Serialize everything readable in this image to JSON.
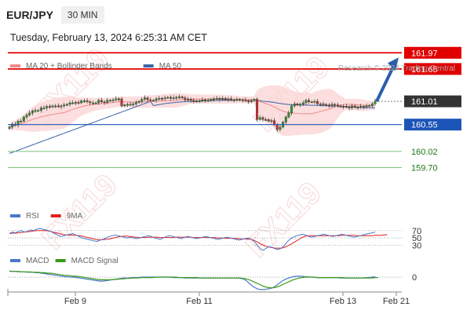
{
  "header": {
    "symbol": "EUR/JPY",
    "timeframe": "30 MIN"
  },
  "datetime": "Tuesday, February 13, 2024 6:25:31 AM CET",
  "copyright": "Research © 2024 Trading Central",
  "watermark": "FX119",
  "legend": {
    "main": [
      {
        "label": "MA 20 + Bollinger Bands",
        "color": "#f08a8a"
      },
      {
        "label": "MA 50",
        "color": "#3a64a8"
      }
    ],
    "rsi": [
      {
        "label": "RSI",
        "color": "#4a78c8"
      },
      {
        "label": "9MA",
        "color": "#e02020"
      }
    ],
    "macd": [
      {
        "label": "MACD",
        "color": "#4a78c8"
      },
      {
        "label": "MACD Signal",
        "color": "#3a9a1a"
      }
    ]
  },
  "colors": {
    "resistance": "#e00000",
    "pivot": "#1c55b8",
    "support": "#7ac27a",
    "up": "#2a9a2a",
    "down": "#c83030",
    "arrow": "#2a5ea8",
    "last_price": "#333333"
  },
  "chart_data": [
    {
      "type": "candlestick",
      "title": "EUR/JPY 30 MIN",
      "x_ticks": [
        "Feb 9",
        "Feb 11",
        "Feb 13",
        "Feb 21"
      ],
      "ylim": [
        159.35,
        162.3
      ],
      "candles": [
        160.5,
        160.56,
        160.54,
        160.62,
        160.62,
        160.7,
        160.74,
        160.78,
        160.82,
        160.83,
        160.83,
        160.88,
        160.88,
        160.91,
        160.9,
        160.92,
        160.92,
        160.91,
        160.92,
        160.94,
        160.95,
        160.98,
        160.98,
        160.99,
        160.98,
        161.02,
        161.02,
        161.0,
        160.98,
        160.98,
        160.98,
        161.03,
        161.0,
        160.99,
        161.03,
        161.03,
        161.04,
        161.06,
        161.06,
        160.92,
        160.94,
        160.95,
        160.95,
        160.96,
        160.99,
        161.01,
        161.05,
        161.08,
        161.04,
        161.03,
        161.03,
        161.06,
        161.07,
        161.06,
        161.08,
        161.09,
        161.07,
        161.08,
        161.09,
        161.1,
        161.08,
        161.04,
        161.05,
        161.03,
        161.0,
        161.02,
        161.02,
        161.04,
        161.03,
        161.03,
        161.05,
        161.06,
        161.07,
        161.05,
        161.07,
        161.04,
        161.06,
        161.04,
        161.04,
        161.05,
        161.03,
        161.04,
        161.02,
        161.01,
        161.02,
        161.05,
        160.65,
        160.69,
        160.65,
        160.65,
        160.62,
        160.63,
        160.55,
        160.45,
        160.5,
        160.6,
        160.7,
        160.78,
        160.92,
        160.96,
        160.94,
        160.95,
        160.98,
        161.03,
        161.0,
        161.0,
        161.01,
        160.96,
        160.96,
        160.95,
        160.94,
        160.92,
        160.95,
        160.94,
        160.92,
        160.9,
        160.91,
        160.9,
        160.88,
        160.92,
        160.89,
        160.89,
        160.91,
        160.9,
        160.92,
        160.93,
        160.96,
        161.01
      ],
      "indicators": [
        "MA 20 + Bollinger Bands",
        "MA 50"
      ],
      "levels": [
        {
          "value": 161.97,
          "kind": "resistance"
        },
        {
          "value": 161.65,
          "kind": "resistance"
        },
        {
          "value": 161.01,
          "kind": "last"
        },
        {
          "value": 160.55,
          "kind": "pivot"
        },
        {
          "value": 160.02,
          "kind": "support"
        },
        {
          "value": 159.7,
          "kind": "support"
        }
      ],
      "last_price": 161.01,
      "forecast_target": 161.97
    },
    {
      "type": "line",
      "series": [
        {
          "name": "RSI",
          "values": [
            62,
            66,
            64,
            68,
            70,
            66,
            68,
            72,
            70,
            74,
            76,
            74,
            72,
            70,
            66,
            62,
            58,
            54,
            56,
            58,
            60,
            62,
            58,
            54,
            50,
            48,
            46,
            44,
            42,
            40,
            44,
            46,
            50,
            54,
            56,
            58,
            56,
            54,
            52,
            50,
            52,
            50,
            48,
            50,
            52,
            54,
            56,
            54,
            50,
            48,
            46,
            50,
            54,
            56,
            54,
            52,
            50,
            48,
            52,
            54,
            52,
            50,
            48,
            50,
            52,
            54,
            52,
            50,
            48,
            46,
            48,
            50,
            52,
            50,
            48,
            46,
            44,
            46,
            48,
            50,
            46,
            40,
            30,
            20,
            16,
            22,
            26,
            24,
            20,
            18,
            22,
            30,
            40,
            48,
            52,
            56,
            58,
            60,
            58,
            54,
            52,
            54,
            56,
            58,
            60,
            58,
            56,
            54,
            56,
            58,
            60,
            58,
            56,
            54,
            52,
            54,
            56,
            58,
            60,
            62,
            64,
            66
          ]
        },
        {
          "name": "9MA",
          "values": [
            62,
            63,
            63,
            64,
            65,
            66,
            67,
            68,
            69,
            70,
            70,
            70,
            70,
            69,
            67,
            65,
            63,
            61,
            59,
            58,
            58,
            57,
            57,
            56,
            55,
            53,
            51,
            49,
            47,
            45,
            45,
            45,
            46,
            47,
            49,
            51,
            53,
            54,
            55,
            55,
            54,
            53,
            52,
            51,
            51,
            51,
            52,
            52,
            52,
            52,
            51,
            51,
            51,
            51,
            51,
            52,
            52,
            52,
            52,
            52,
            52,
            51,
            51,
            51,
            51,
            51,
            51,
            51,
            51,
            50,
            50,
            49,
            49,
            49,
            49,
            48,
            48,
            47,
            47,
            47,
            46,
            43,
            39,
            34,
            30,
            27,
            25,
            23,
            22,
            22,
            22,
            24,
            28,
            32,
            37,
            42,
            47,
            52,
            55,
            56,
            56,
            56,
            56,
            56,
            56,
            56,
            56,
            56,
            56,
            56,
            57,
            57,
            57,
            57,
            57,
            56,
            56,
            56,
            56,
            56,
            56,
            57,
            57,
            57,
            58,
            59
          ]
        }
      ],
      "levels": [
        70,
        50,
        30
      ]
    },
    {
      "type": "line",
      "series": [
        {
          "name": "MACD",
          "values": [
            0.14,
            0.13,
            0.13,
            0.12,
            0.12,
            0.12,
            0.11,
            0.11,
            0.11,
            0.1,
            0.1,
            0.09,
            0.08,
            0.07,
            0.06,
            0.05,
            0.04,
            0.03,
            0.02,
            0.01,
            0.01,
            0.0,
            0.0,
            -0.01,
            -0.02,
            -0.03,
            -0.04,
            -0.05,
            -0.06,
            -0.07,
            -0.08,
            -0.09,
            -0.09,
            -0.08,
            -0.07,
            -0.06,
            -0.05,
            -0.04,
            -0.03,
            -0.02,
            -0.02,
            -0.02,
            -0.01,
            -0.01,
            -0.01,
            0.0,
            0.0,
            0.0,
            0.0,
            0.0,
            0.0,
            0.0,
            0.0,
            0.0,
            0.0,
            0.0,
            -0.01,
            -0.01,
            -0.01,
            -0.01,
            -0.02,
            -0.02,
            -0.02,
            -0.02,
            -0.02,
            -0.02,
            -0.02,
            -0.02,
            -0.02,
            -0.02,
            -0.02,
            -0.02,
            -0.02,
            -0.02,
            -0.02,
            -0.02,
            -0.02,
            -0.02,
            -0.02,
            -0.03,
            -0.04,
            -0.08,
            -0.14,
            -0.2,
            -0.24,
            -0.27,
            -0.28,
            -0.28,
            -0.27,
            -0.26,
            -0.24,
            -0.2,
            -0.15,
            -0.1,
            -0.06,
            -0.03,
            -0.01,
            0.01,
            0.02,
            0.02,
            0.02,
            0.01,
            0.01,
            0.0,
            0.0,
            -0.01,
            -0.01,
            -0.01,
            -0.01,
            -0.01,
            -0.01,
            -0.01,
            -0.01,
            -0.02,
            -0.02,
            -0.02,
            -0.02,
            -0.02,
            -0.02,
            -0.02,
            -0.02,
            -0.02,
            -0.01,
            -0.01,
            0.0,
            0.01
          ]
        },
        {
          "name": "MACD Signal",
          "values": [
            0.13,
            0.13,
            0.13,
            0.13,
            0.12,
            0.12,
            0.12,
            0.12,
            0.11,
            0.11,
            0.11,
            0.1,
            0.1,
            0.09,
            0.09,
            0.08,
            0.07,
            0.06,
            0.05,
            0.04,
            0.04,
            0.03,
            0.02,
            0.02,
            0.01,
            0.0,
            -0.01,
            -0.02,
            -0.03,
            -0.04,
            -0.05,
            -0.06,
            -0.06,
            -0.06,
            -0.06,
            -0.06,
            -0.05,
            -0.05,
            -0.04,
            -0.04,
            -0.03,
            -0.03,
            -0.02,
            -0.02,
            -0.02,
            -0.01,
            -0.01,
            -0.01,
            -0.01,
            -0.01,
            0.0,
            0.0,
            0.0,
            0.0,
            0.0,
            0.0,
            0.0,
            0.0,
            -0.01,
            -0.01,
            -0.01,
            -0.01,
            -0.01,
            -0.01,
            -0.01,
            -0.02,
            -0.02,
            -0.02,
            -0.02,
            -0.02,
            -0.02,
            -0.02,
            -0.02,
            -0.02,
            -0.02,
            -0.02,
            -0.02,
            -0.02,
            -0.02,
            -0.02,
            -0.03,
            -0.04,
            -0.06,
            -0.09,
            -0.12,
            -0.15,
            -0.18,
            -0.21,
            -0.23,
            -0.24,
            -0.24,
            -0.23,
            -0.21,
            -0.18,
            -0.15,
            -0.12,
            -0.09,
            -0.06,
            -0.04,
            -0.02,
            -0.01,
            0.0,
            0.0,
            0.0,
            0.0,
            -0.01,
            -0.01,
            -0.01,
            -0.01,
            -0.01,
            -0.01,
            -0.01,
            -0.01,
            -0.01,
            -0.01,
            -0.02,
            -0.02,
            -0.02,
            -0.02,
            -0.02,
            -0.02,
            -0.02,
            -0.02,
            -0.02,
            -0.02,
            -0.01,
            -0.01
          ]
        }
      ],
      "levels": [
        0
      ]
    }
  ]
}
